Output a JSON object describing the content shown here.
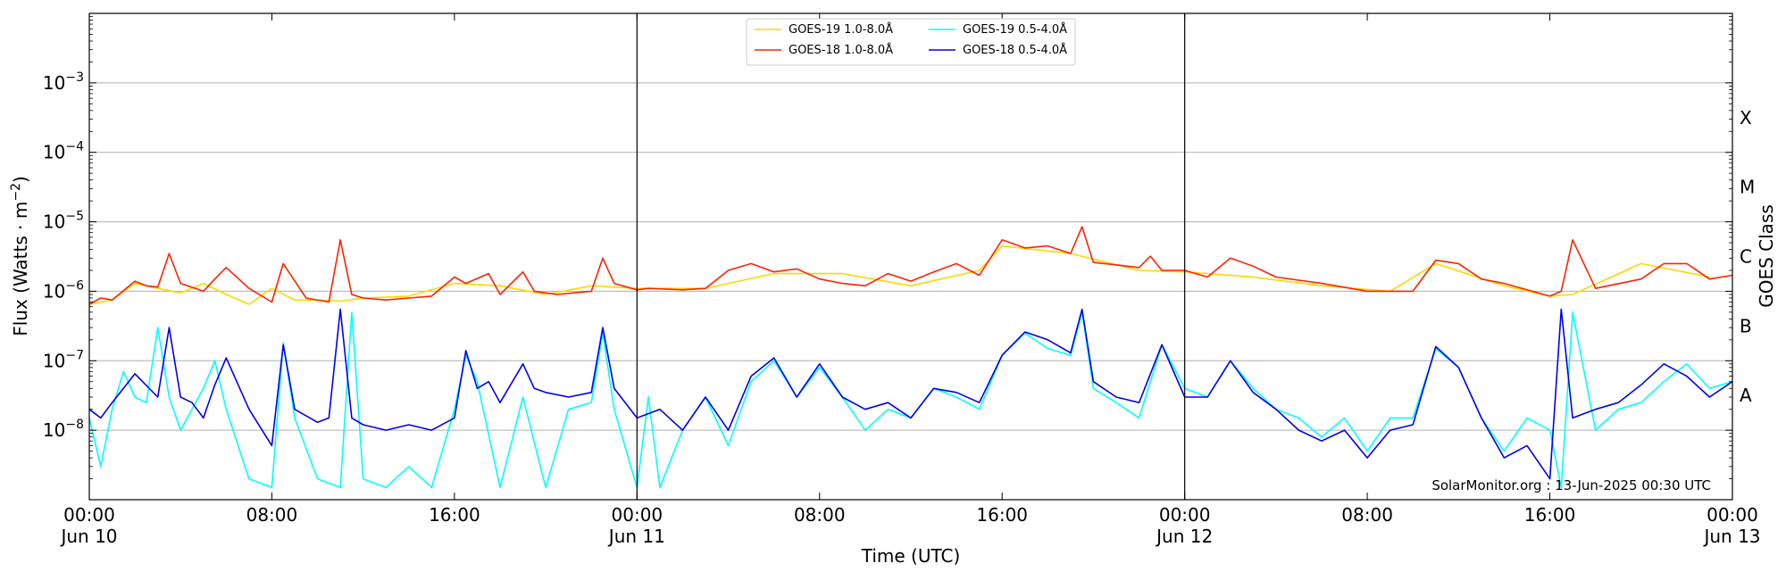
{
  "chart_data": {
    "type": "line",
    "title": "",
    "xlabel": "Time (UTC)",
    "ylabel": "Flux (Watts · m",
    "ylabel_exponent": "−2",
    "ylabel_close": ")",
    "right_ylabel": "GOES Class",
    "y_scale": "log",
    "ylim": [
      1e-09,
      0.01
    ],
    "xlim": [
      "2025-06-10 00:00",
      "2025-06-13 00:00"
    ],
    "grid": "horizontal at decades 1e-8 to 1e-3",
    "legend_position": "top-center",
    "day_separators": [
      "2025-06-11 00:00",
      "2025-06-12 00:00"
    ],
    "y_ticks": [
      {
        "value": 1e-08,
        "base": "10",
        "exp": "−8"
      },
      {
        "value": 1e-07,
        "base": "10",
        "exp": "−7"
      },
      {
        "value": 1e-06,
        "base": "10",
        "exp": "−6"
      },
      {
        "value": 1e-05,
        "base": "10",
        "exp": "−5"
      },
      {
        "value": 0.0001,
        "base": "10",
        "exp": "−4"
      },
      {
        "value": 0.001,
        "base": "10",
        "exp": "−3"
      }
    ],
    "x_ticks": [
      {
        "time": "2025-06-10 00:00",
        "line1": "00:00",
        "line2": "Jun 10"
      },
      {
        "time": "2025-06-10 08:00",
        "line1": "08:00",
        "line2": ""
      },
      {
        "time": "2025-06-10 16:00",
        "line1": "16:00",
        "line2": ""
      },
      {
        "time": "2025-06-11 00:00",
        "line1": "00:00",
        "line2": "Jun 11"
      },
      {
        "time": "2025-06-11 08:00",
        "line1": "08:00",
        "line2": ""
      },
      {
        "time": "2025-06-11 16:00",
        "line1": "16:00",
        "line2": ""
      },
      {
        "time": "2025-06-12 00:00",
        "line1": "00:00",
        "line2": "Jun 12"
      },
      {
        "time": "2025-06-12 08:00",
        "line1": "08:00",
        "line2": ""
      },
      {
        "time": "2025-06-12 16:00",
        "line1": "16:00",
        "line2": ""
      },
      {
        "time": "2025-06-13 00:00",
        "line1": "00:00",
        "line2": "Jun 13"
      }
    ],
    "goes_classes": [
      {
        "label": "A",
        "value": 3.16e-08
      },
      {
        "label": "B",
        "value": 3.16e-07
      },
      {
        "label": "C",
        "value": 3.16e-06
      },
      {
        "label": "M",
        "value": 3.16e-05
      },
      {
        "label": "X",
        "value": 0.000316
      }
    ],
    "annotation": "SolarMonitor.org : 13-Jun-2025 00:30 UTC",
    "series": [
      {
        "name": "GOES-19 1.0-8.0Å",
        "color": "#ffd700",
        "x": [
          "2025-06-10 00:00",
          "2025-06-10 01:00",
          "2025-06-10 02:00",
          "2025-06-10 03:00",
          "2025-06-10 04:00",
          "2025-06-10 05:00",
          "2025-06-10 06:00",
          "2025-06-10 07:00",
          "2025-06-10 08:00",
          "2025-06-10 09:00",
          "2025-06-10 10:00",
          "2025-06-10 11:00",
          "2025-06-10 12:00",
          "2025-06-10 14:00",
          "2025-06-10 16:00",
          "2025-06-10 18:00",
          "2025-06-10 20:00",
          "2025-06-10 22:00",
          "2025-06-11 00:00",
          "2025-06-11 03:00",
          "2025-06-11 06:00",
          "2025-06-11 09:00",
          "2025-06-11 12:00",
          "2025-06-11 15:00",
          "2025-06-11 16:00",
          "2025-06-11 19:00",
          "2025-06-11 22:00",
          "2025-06-12 00:00",
          "2025-06-12 03:00",
          "2025-06-12 06:00",
          "2025-06-12 09:00",
          "2025-06-12 11:00",
          "2025-06-12 14:00",
          "2025-06-12 16:00",
          "2025-06-12 17:00",
          "2025-06-12 20:00",
          "2025-06-12 23:00"
        ],
        "values": [
          6.5e-07,
          7.5e-07,
          1.3e-06,
          1.1e-06,
          9.5e-07,
          1.3e-06,
          9e-07,
          6.5e-07,
          1.1e-06,
          7.5e-07,
          7.5e-07,
          7.2e-07,
          8e-07,
          8.5e-07,
          1.3e-06,
          1.2e-06,
          9e-07,
          1.2e-06,
          1.1e-06,
          1.1e-06,
          1.8e-06,
          1.8e-06,
          1.2e-06,
          2e-06,
          4.5e-06,
          3.5e-06,
          2e-06,
          1.9e-06,
          1.6e-06,
          1.2e-06,
          1e-06,
          2.5e-06,
          1.2e-06,
          8.5e-07,
          9e-07,
          2.5e-06,
          1.6e-06
        ]
      },
      {
        "name": "GOES-18 1.0-8.0Å",
        "color": "#ff2200",
        "x": [
          "2025-06-10 00:00",
          "2025-06-10 00:30",
          "2025-06-10 01:00",
          "2025-06-10 02:00",
          "2025-06-10 02:30",
          "2025-06-10 03:00",
          "2025-06-10 03:30",
          "2025-06-10 04:00",
          "2025-06-10 05:00",
          "2025-06-10 05:30",
          "2025-06-10 06:00",
          "2025-06-10 07:00",
          "2025-06-10 08:00",
          "2025-06-10 08:30",
          "2025-06-10 09:30",
          "2025-06-10 10:30",
          "2025-06-10 11:00",
          "2025-06-10 11:30",
          "2025-06-10 12:00",
          "2025-06-10 13:00",
          "2025-06-10 14:00",
          "2025-06-10 15:00",
          "2025-06-10 16:00",
          "2025-06-10 16:30",
          "2025-06-10 17:30",
          "2025-06-10 18:00",
          "2025-06-10 19:00",
          "2025-06-10 19:30",
          "2025-06-10 20:30",
          "2025-06-10 22:00",
          "2025-06-10 22:30",
          "2025-06-10 23:00",
          "2025-06-11 00:00",
          "2025-06-11 00:30",
          "2025-06-11 02:00",
          "2025-06-11 03:00",
          "2025-06-11 04:00",
          "2025-06-11 05:00",
          "2025-06-11 06:00",
          "2025-06-11 07:00",
          "2025-06-11 08:00",
          "2025-06-11 09:00",
          "2025-06-11 10:00",
          "2025-06-11 11:00",
          "2025-06-11 12:00",
          "2025-06-11 13:00",
          "2025-06-11 14:00",
          "2025-06-11 15:00",
          "2025-06-11 16:00",
          "2025-06-11 17:00",
          "2025-06-11 18:00",
          "2025-06-11 19:00",
          "2025-06-11 19:30",
          "2025-06-11 20:00",
          "2025-06-11 21:00",
          "2025-06-11 22:00",
          "2025-06-11 22:30",
          "2025-06-11 23:00",
          "2025-06-12 00:00",
          "2025-06-12 01:00",
          "2025-06-12 02:00",
          "2025-06-12 03:00",
          "2025-06-12 04:00",
          "2025-06-12 06:00",
          "2025-06-12 08:00",
          "2025-06-12 10:00",
          "2025-06-12 11:00",
          "2025-06-12 12:00",
          "2025-06-12 13:00",
          "2025-06-12 14:00",
          "2025-06-12 16:00",
          "2025-06-12 16:30",
          "2025-06-12 17:00",
          "2025-06-12 18:00",
          "2025-06-12 20:00",
          "2025-06-12 21:00",
          "2025-06-12 22:00",
          "2025-06-12 23:00",
          "2025-06-13 00:00"
        ],
        "values": [
          6.5e-07,
          8e-07,
          7.5e-07,
          1.4e-06,
          1.2e-06,
          1.15e-06,
          3.5e-06,
          1.3e-06,
          1e-06,
          1.5e-06,
          2.2e-06,
          1.1e-06,
          7e-07,
          2.5e-06,
          8e-07,
          7e-07,
          5.5e-06,
          9e-07,
          8e-07,
          7.5e-07,
          8e-07,
          8.5e-07,
          1.6e-06,
          1.3e-06,
          1.8e-06,
          9e-07,
          1.9e-06,
          1e-06,
          9e-07,
          1e-06,
          3e-06,
          1.3e-06,
          1.05e-06,
          1.1e-06,
          1.05e-06,
          1.1e-06,
          2e-06,
          2.5e-06,
          1.9e-06,
          2.1e-06,
          1.5e-06,
          1.3e-06,
          1.2e-06,
          1.8e-06,
          1.4e-06,
          1.9e-06,
          2.5e-06,
          1.7e-06,
          5.5e-06,
          4.2e-06,
          4.5e-06,
          3.5e-06,
          8.5e-06,
          2.6e-06,
          2.4e-06,
          2.2e-06,
          3.2e-06,
          2e-06,
          2e-06,
          1.6e-06,
          3e-06,
          2.3e-06,
          1.6e-06,
          1.3e-06,
          1e-06,
          1e-06,
          2.8e-06,
          2.5e-06,
          1.5e-06,
          1.3e-06,
          8.5e-07,
          1e-06,
          5.5e-06,
          1.1e-06,
          1.5e-06,
          2.5e-06,
          2.5e-06,
          1.5e-06,
          1.7e-06
        ]
      },
      {
        "name": "GOES-19 0.5-4.0Å",
        "color": "#00ffff",
        "x": [
          "2025-06-10 00:00",
          "2025-06-10 00:30",
          "2025-06-10 01:00",
          "2025-06-10 01:30",
          "2025-06-10 02:00",
          "2025-06-10 02:30",
          "2025-06-10 03:00",
          "2025-06-10 03:30",
          "2025-06-10 04:00",
          "2025-06-10 05:00",
          "2025-06-10 05:30",
          "2025-06-10 06:00",
          "2025-06-10 07:00",
          "2025-06-10 08:00",
          "2025-06-10 08:30",
          "2025-06-10 09:00",
          "2025-06-10 10:00",
          "2025-06-10 11:00",
          "2025-06-10 11:30",
          "2025-06-10 12:00",
          "2025-06-10 13:00",
          "2025-06-10 14:00",
          "2025-06-10 15:00",
          "2025-06-10 16:00",
          "2025-06-10 16:30",
          "2025-06-10 17:00",
          "2025-06-10 18:00",
          "2025-06-10 19:00",
          "2025-06-10 20:00",
          "2025-06-10 21:00",
          "2025-06-10 22:00",
          "2025-06-10 22:30",
          "2025-06-10 23:00",
          "2025-06-11 00:00",
          "2025-06-11 00:30",
          "2025-06-11 01:00",
          "2025-06-11 02:00",
          "2025-06-11 03:00",
          "2025-06-11 04:00",
          "2025-06-11 05:00",
          "2025-06-11 06:00",
          "2025-06-11 07:00",
          "2025-06-11 08:00",
          "2025-06-11 09:00",
          "2025-06-11 10:00",
          "2025-06-11 11:00",
          "2025-06-11 12:00",
          "2025-06-11 13:00",
          "2025-06-11 14:00",
          "2025-06-11 15:00",
          "2025-06-11 16:00",
          "2025-06-11 17:00",
          "2025-06-11 18:00",
          "2025-06-11 19:00",
          "2025-06-11 19:30",
          "2025-06-11 20:00",
          "2025-06-11 21:00",
          "2025-06-11 22:00",
          "2025-06-11 23:00",
          "2025-06-12 00:00",
          "2025-06-12 01:00",
          "2025-06-12 02:00",
          "2025-06-12 03:00",
          "2025-06-12 04:00",
          "2025-06-12 05:00",
          "2025-06-12 06:00",
          "2025-06-12 07:00",
          "2025-06-12 08:00",
          "2025-06-12 09:00",
          "2025-06-12 10:00",
          "2025-06-12 11:00",
          "2025-06-12 12:00",
          "2025-06-12 13:00",
          "2025-06-12 14:00",
          "2025-06-12 15:00",
          "2025-06-12 16:00",
          "2025-06-12 16:30",
          "2025-06-12 17:00",
          "2025-06-12 18:00",
          "2025-06-12 19:00",
          "2025-06-12 20:00",
          "2025-06-12 21:00",
          "2025-06-12 22:00",
          "2025-06-12 23:00",
          "2025-06-13 00:00"
        ],
        "values": [
          1.5e-08,
          3e-09,
          2e-08,
          7e-08,
          3e-08,
          2.5e-08,
          3e-07,
          3e-08,
          1e-08,
          4e-08,
          1e-07,
          2e-08,
          2e-09,
          1.5e-09,
          1.8e-07,
          1.5e-08,
          2e-09,
          1.5e-09,
          5e-07,
          2e-09,
          1.5e-09,
          3e-09,
          1.5e-09,
          2e-08,
          1.2e-07,
          5e-08,
          1.5e-09,
          3e-08,
          1.5e-09,
          2e-08,
          2.5e-08,
          2.5e-07,
          2e-08,
          1.5e-09,
          3e-08,
          1.5e-09,
          1e-08,
          3e-08,
          6e-09,
          5e-08,
          1e-07,
          3e-08,
          8e-08,
          3e-08,
          1e-08,
          2e-08,
          1.5e-08,
          4e-08,
          3e-08,
          2e-08,
          1.2e-07,
          2.5e-07,
          1.5e-07,
          1.2e-07,
          5e-07,
          4e-08,
          2.5e-08,
          1.5e-08,
          1.7e-07,
          4e-08,
          3e-08,
          1e-07,
          4e-08,
          2e-08,
          1.5e-08,
          8e-09,
          1.5e-08,
          5e-09,
          1.5e-08,
          1.5e-08,
          1.5e-07,
          8e-08,
          1.5e-08,
          5e-09,
          1.5e-08,
          1e-08,
          1.5e-09,
          5e-07,
          1e-08,
          2e-08,
          2.5e-08,
          5e-08,
          9e-08,
          4e-08,
          5e-08
        ]
      },
      {
        "name": "GOES-18 0.5-4.0Å",
        "color": "#0000ee",
        "x": [
          "2025-06-10 00:00",
          "2025-06-10 00:30",
          "2025-06-10 01:00",
          "2025-06-10 02:00",
          "2025-06-10 03:00",
          "2025-06-10 03:30",
          "2025-06-10 04:00",
          "2025-06-10 04:30",
          "2025-06-10 05:00",
          "2025-06-10 05:30",
          "2025-06-10 06:00",
          "2025-06-10 07:00",
          "2025-06-10 08:00",
          "2025-06-10 08:30",
          "2025-06-10 09:00",
          "2025-06-10 10:00",
          "2025-06-10 10:30",
          "2025-06-10 11:00",
          "2025-06-10 11:30",
          "2025-06-10 12:00",
          "2025-06-10 13:00",
          "2025-06-10 14:00",
          "2025-06-10 15:00",
          "2025-06-10 16:00",
          "2025-06-10 16:30",
          "2025-06-10 17:00",
          "2025-06-10 17:30",
          "2025-06-10 18:00",
          "2025-06-10 19:00",
          "2025-06-10 19:30",
          "2025-06-10 20:00",
          "2025-06-10 21:00",
          "2025-06-10 22:00",
          "2025-06-10 22:30",
          "2025-06-10 23:00",
          "2025-06-11 00:00",
          "2025-06-11 01:00",
          "2025-06-11 02:00",
          "2025-06-11 03:00",
          "2025-06-11 04:00",
          "2025-06-11 05:00",
          "2025-06-11 06:00",
          "2025-06-11 07:00",
          "2025-06-11 08:00",
          "2025-06-11 09:00",
          "2025-06-11 10:00",
          "2025-06-11 11:00",
          "2025-06-11 12:00",
          "2025-06-11 13:00",
          "2025-06-11 14:00",
          "2025-06-11 15:00",
          "2025-06-11 16:00",
          "2025-06-11 17:00",
          "2025-06-11 18:00",
          "2025-06-11 19:00",
          "2025-06-11 19:30",
          "2025-06-11 20:00",
          "2025-06-11 21:00",
          "2025-06-11 22:00",
          "2025-06-11 23:00",
          "2025-06-12 00:00",
          "2025-06-12 01:00",
          "2025-06-12 02:00",
          "2025-06-12 03:00",
          "2025-06-12 04:00",
          "2025-06-12 05:00",
          "2025-06-12 06:00",
          "2025-06-12 07:00",
          "2025-06-12 08:00",
          "2025-06-12 09:00",
          "2025-06-12 10:00",
          "2025-06-12 11:00",
          "2025-06-12 12:00",
          "2025-06-12 13:00",
          "2025-06-12 14:00",
          "2025-06-12 15:00",
          "2025-06-12 16:00",
          "2025-06-12 16:30",
          "2025-06-12 17:00",
          "2025-06-12 18:00",
          "2025-06-12 19:00",
          "2025-06-12 20:00",
          "2025-06-12 21:00",
          "2025-06-12 22:00",
          "2025-06-12 23:00",
          "2025-06-13 00:00"
        ],
        "values": [
          2e-08,
          1.5e-08,
          2.5e-08,
          6.5e-08,
          3e-08,
          3e-07,
          3e-08,
          2.5e-08,
          1.5e-08,
          4.5e-08,
          1.1e-07,
          2e-08,
          6e-09,
          1.7e-07,
          2e-08,
          1.3e-08,
          1.5e-08,
          5.5e-07,
          1.5e-08,
          1.2e-08,
          1e-08,
          1.2e-08,
          1e-08,
          1.5e-08,
          1.4e-07,
          4e-08,
          5e-08,
          2.5e-08,
          9e-08,
          4e-08,
          3.5e-08,
          3e-08,
          3.5e-08,
          3e-07,
          4e-08,
          1.5e-08,
          2e-08,
          1e-08,
          3e-08,
          1e-08,
          6e-08,
          1.1e-07,
          3e-08,
          9e-08,
          3e-08,
          2e-08,
          2.5e-08,
          1.5e-08,
          4e-08,
          3.5e-08,
          2.5e-08,
          1.2e-07,
          2.6e-07,
          2e-07,
          1.3e-07,
          5.5e-07,
          5e-08,
          3e-08,
          2.5e-08,
          1.7e-07,
          3e-08,
          3e-08,
          1e-07,
          3.5e-08,
          2e-08,
          1e-08,
          7e-09,
          1e-08,
          4e-09,
          1e-08,
          1.2e-08,
          1.6e-07,
          8e-08,
          1.5e-08,
          4e-09,
          6e-09,
          2e-09,
          5.5e-07,
          1.5e-08,
          2e-08,
          2.5e-08,
          4.5e-08,
          9e-08,
          6e-08,
          3e-08,
          5e-08
        ]
      }
    ]
  }
}
